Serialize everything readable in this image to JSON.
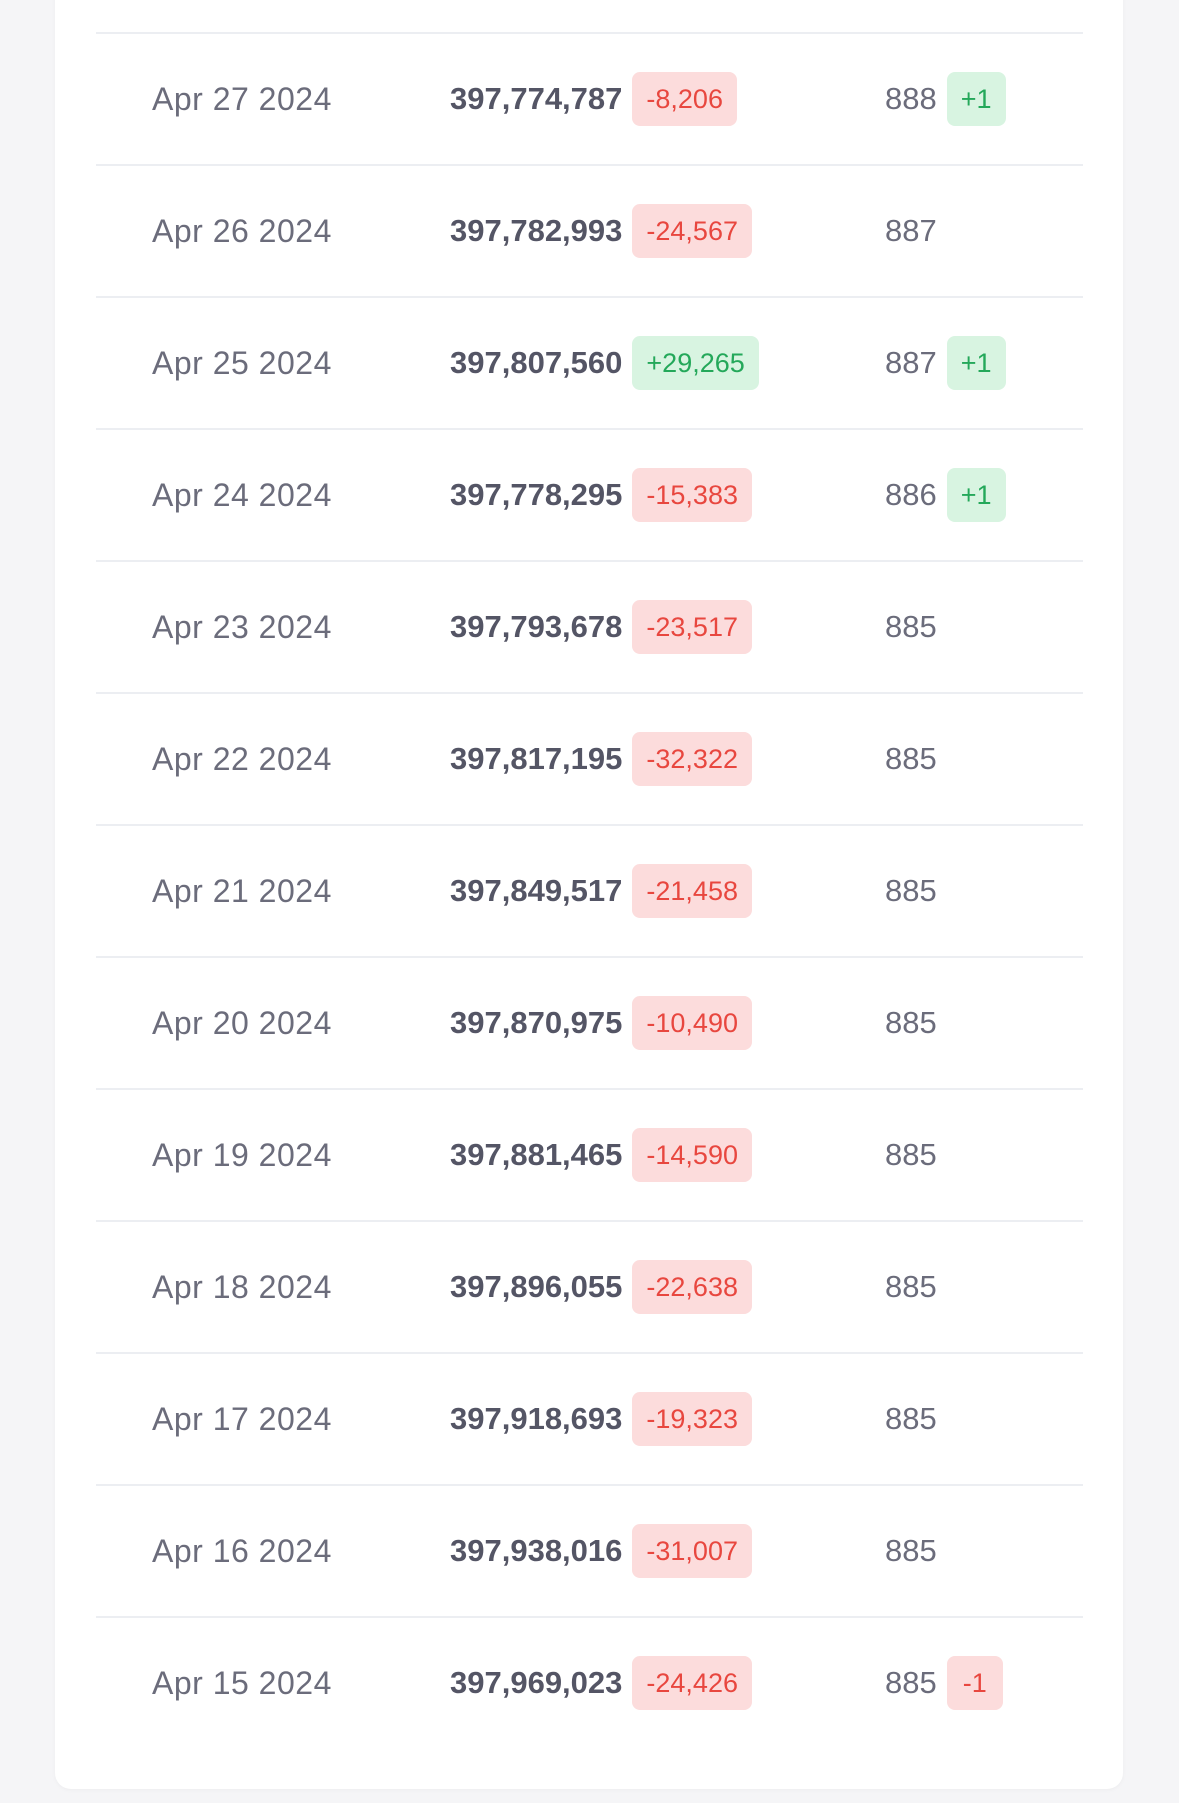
{
  "rows": [
    {
      "date": "Apr 27 2024",
      "value": "397,774,787",
      "delta": "-8,206",
      "delta_sign": "neg",
      "count": "888",
      "count_delta": "+1",
      "count_delta_sign": "pos"
    },
    {
      "date": "Apr 26 2024",
      "value": "397,782,993",
      "delta": "-24,567",
      "delta_sign": "neg",
      "count": "887",
      "count_delta": "",
      "count_delta_sign": ""
    },
    {
      "date": "Apr 25 2024",
      "value": "397,807,560",
      "delta": "+29,265",
      "delta_sign": "pos",
      "count": "887",
      "count_delta": "+1",
      "count_delta_sign": "pos"
    },
    {
      "date": "Apr 24 2024",
      "value": "397,778,295",
      "delta": "-15,383",
      "delta_sign": "neg",
      "count": "886",
      "count_delta": "+1",
      "count_delta_sign": "pos"
    },
    {
      "date": "Apr 23 2024",
      "value": "397,793,678",
      "delta": "-23,517",
      "delta_sign": "neg",
      "count": "885",
      "count_delta": "",
      "count_delta_sign": ""
    },
    {
      "date": "Apr 22 2024",
      "value": "397,817,195",
      "delta": "-32,322",
      "delta_sign": "neg",
      "count": "885",
      "count_delta": "",
      "count_delta_sign": ""
    },
    {
      "date": "Apr 21 2024",
      "value": "397,849,517",
      "delta": "-21,458",
      "delta_sign": "neg",
      "count": "885",
      "count_delta": "",
      "count_delta_sign": ""
    },
    {
      "date": "Apr 20 2024",
      "value": "397,870,975",
      "delta": "-10,490",
      "delta_sign": "neg",
      "count": "885",
      "count_delta": "",
      "count_delta_sign": ""
    },
    {
      "date": "Apr 19 2024",
      "value": "397,881,465",
      "delta": "-14,590",
      "delta_sign": "neg",
      "count": "885",
      "count_delta": "",
      "count_delta_sign": ""
    },
    {
      "date": "Apr 18 2024",
      "value": "397,896,055",
      "delta": "-22,638",
      "delta_sign": "neg",
      "count": "885",
      "count_delta": "",
      "count_delta_sign": ""
    },
    {
      "date": "Apr 17 2024",
      "value": "397,918,693",
      "delta": "-19,323",
      "delta_sign": "neg",
      "count": "885",
      "count_delta": "",
      "count_delta_sign": ""
    },
    {
      "date": "Apr 16 2024",
      "value": "397,938,016",
      "delta": "-31,007",
      "delta_sign": "neg",
      "count": "885",
      "count_delta": "",
      "count_delta_sign": ""
    },
    {
      "date": "Apr 15 2024",
      "value": "397,969,023",
      "delta": "-24,426",
      "delta_sign": "neg",
      "count": "885",
      "count_delta": "-1",
      "count_delta_sign": "neg"
    }
  ],
  "colors": {
    "negative_text": "#e8473f",
    "negative_bg": "#fcdcdc",
    "positive_text": "#24a85a",
    "positive_bg": "#d8f4e1"
  }
}
